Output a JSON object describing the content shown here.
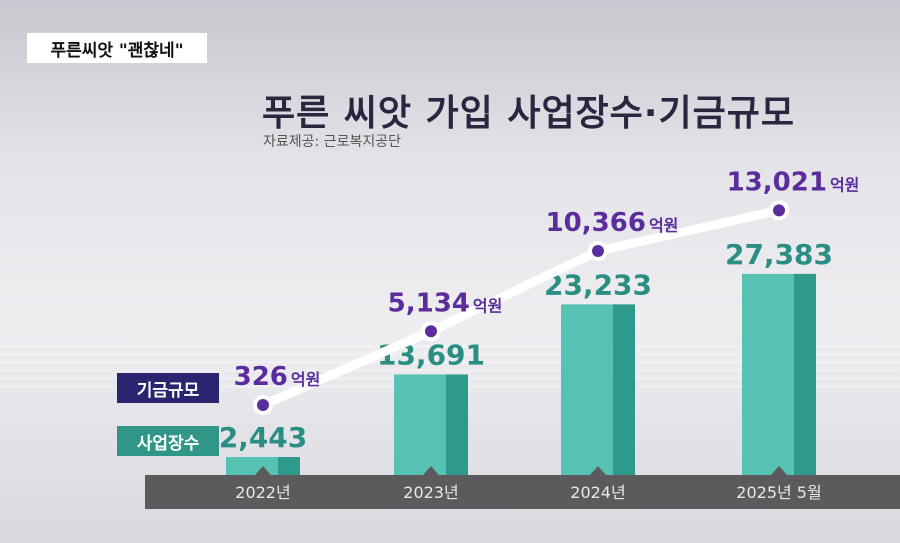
{
  "header_tag": "푸른씨앗 \"괜찮네\"",
  "chart_data": {
    "type": "bar",
    "title": "푸른 씨앗 가입 사업장수·기금규모",
    "source": "자료제공: 근로복지공단",
    "categories": [
      "2022년",
      "2023년",
      "2024년",
      "2025년 5월"
    ],
    "series": [
      {
        "name": "사업장수",
        "type": "bar",
        "values": [
          2443,
          13691,
          23233,
          27383
        ],
        "labels": [
          "2,443",
          "13,691",
          "23,233",
          "27,383"
        ],
        "color": "#4db8aa"
      },
      {
        "name": "기금규모",
        "type": "line",
        "values": [
          326,
          5134,
          10366,
          13021
        ],
        "labels": [
          "326",
          "5,134",
          "10,366",
          "13,021"
        ],
        "unit": "억원",
        "color": "#5b2d9c"
      }
    ],
    "legend": [
      "기금규모",
      "사업장수"
    ],
    "bar_ylim": [
      0,
      29000
    ],
    "line_ylim": [
      0,
      15000
    ]
  }
}
